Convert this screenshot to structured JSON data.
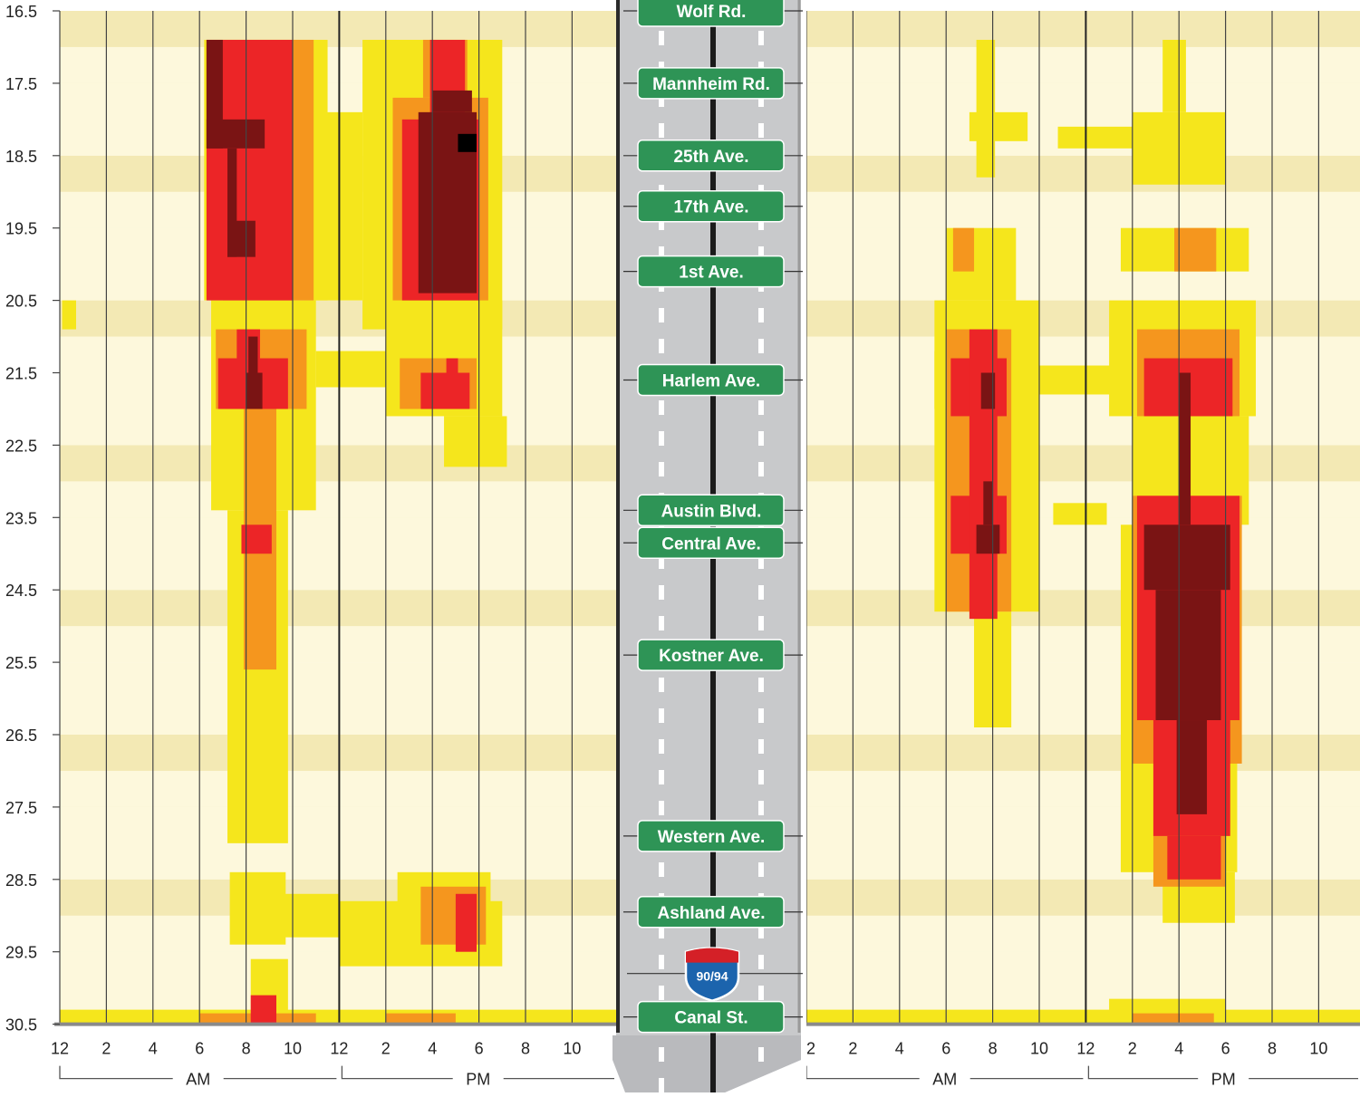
{
  "y_axis": {
    "ticks": [
      "16.5",
      "17.5",
      "18.5",
      "19.5",
      "20.5",
      "21.5",
      "22.5",
      "23.5",
      "24.5",
      "25.5",
      "26.5",
      "27.5",
      "28.5",
      "29.5",
      "30.5"
    ]
  },
  "x_axis": {
    "ticks": [
      "12",
      "2",
      "4",
      "6",
      "8",
      "10",
      "12",
      "2",
      "4",
      "6",
      "8",
      "10"
    ],
    "periods": [
      "AM",
      "PM"
    ]
  },
  "colors": {
    "band_light": "#fdf8dc",
    "band_dark": "#f3e9b4",
    "yellow": "#f5e61c",
    "orange": "#f5961e",
    "red": "#ec2527",
    "darkred": "#7a1414",
    "black": "#000000",
    "sign_green": "#2e9456",
    "highway_gray": "#c8c9cb"
  },
  "highway": {
    "shield": "90/94",
    "exits": [
      {
        "label": "Wolf Rd.",
        "mile": 16.5
      },
      {
        "label": "Mannheim Rd.",
        "mile": 17.5
      },
      {
        "label": "25th Ave.",
        "mile": 18.5
      },
      {
        "label": "17th Ave.",
        "mile": 19.2
      },
      {
        "label": "1st Ave.",
        "mile": 20.1
      },
      {
        "label": "Harlem Ave.",
        "mile": 21.6
      },
      {
        "label": "Austin Blvd.",
        "mile": 23.4
      },
      {
        "label": "Central Ave.",
        "mile": 23.85
      },
      {
        "label": "Kostner Ave.",
        "mile": 25.4
      },
      {
        "label": "Western Ave.",
        "mile": 27.9
      },
      {
        "label": "Ashland Ave.",
        "mile": 28.95
      },
      {
        "label": "Canal St.",
        "mile": 30.4
      }
    ]
  },
  "chart_data": [
    {
      "type": "heatmap",
      "xlabel": "",
      "ylabel": "",
      "x_unit_hours": [
        0,
        24
      ],
      "y_range_mile": [
        16.5,
        30.5
      ],
      "level_order": [
        "yellow",
        "orange",
        "red",
        "darkred",
        "black"
      ],
      "regions": [
        {
          "level": "yellow",
          "hours": [
            6.2,
            11.5
          ],
          "miles": [
            16.9,
            20.5
          ]
        },
        {
          "level": "yellow",
          "hours": [
            10.5,
            13.0
          ],
          "miles": [
            17.9,
            20.5
          ]
        },
        {
          "level": "yellow",
          "hours": [
            13.0,
            19.0
          ],
          "miles": [
            16.9,
            20.9
          ]
        },
        {
          "level": "yellow",
          "hours": [
            6.5,
            11.0
          ],
          "miles": [
            20.5,
            23.4
          ]
        },
        {
          "level": "yellow",
          "hours": [
            11.0,
            14.5
          ],
          "miles": [
            21.2,
            21.7
          ]
        },
        {
          "level": "yellow",
          "hours": [
            14.0,
            19.0
          ],
          "miles": [
            20.5,
            22.1
          ]
        },
        {
          "level": "yellow",
          "hours": [
            16.5,
            19.2
          ],
          "miles": [
            22.1,
            22.8
          ]
        },
        {
          "level": "yellow",
          "hours": [
            7.2,
            9.8
          ],
          "miles": [
            23.4,
            28.0
          ]
        },
        {
          "level": "yellow",
          "hours": [
            7.3,
            9.7
          ],
          "miles": [
            28.4,
            29.4
          ]
        },
        {
          "level": "yellow",
          "hours": [
            9.0,
            12.0
          ],
          "miles": [
            28.7,
            29.3
          ]
        },
        {
          "level": "yellow",
          "hours": [
            12.0,
            19.0
          ],
          "miles": [
            28.8,
            29.7
          ]
        },
        {
          "level": "yellow",
          "hours": [
            14.5,
            18.5
          ],
          "miles": [
            28.4,
            28.9
          ]
        },
        {
          "level": "yellow",
          "hours": [
            8.2,
            9.8
          ],
          "miles": [
            29.6,
            30.4
          ]
        },
        {
          "level": "yellow",
          "hours": [
            0.1,
            0.7
          ],
          "miles": [
            20.5,
            20.9
          ]
        },
        {
          "level": "yellow",
          "hours": [
            0,
            24
          ],
          "miles": [
            30.3,
            30.5
          ]
        },
        {
          "level": "orange",
          "hours": [
            7.0,
            10.9
          ],
          "miles": [
            16.9,
            20.5
          ]
        },
        {
          "level": "orange",
          "hours": [
            14.3,
            18.4
          ],
          "miles": [
            17.7,
            20.5
          ]
        },
        {
          "level": "orange",
          "hours": [
            6.7,
            10.6
          ],
          "miles": [
            20.9,
            22.0
          ]
        },
        {
          "level": "orange",
          "hours": [
            15.6,
            17.5
          ],
          "miles": [
            16.9,
            17.7
          ]
        },
        {
          "level": "orange",
          "hours": [
            14.6,
            17.9
          ],
          "miles": [
            21.3,
            22.0
          ]
        },
        {
          "level": "orange",
          "hours": [
            7.9,
            9.3
          ],
          "miles": [
            22.0,
            25.6
          ]
        },
        {
          "level": "orange",
          "hours": [
            15.5,
            18.3
          ],
          "miles": [
            28.6,
            29.4
          ]
        },
        {
          "level": "orange",
          "hours": [
            6.0,
            11.0
          ],
          "miles": [
            30.35,
            30.5
          ]
        },
        {
          "level": "orange",
          "hours": [
            14.0,
            17.0
          ],
          "miles": [
            30.35,
            30.5
          ]
        },
        {
          "level": "red",
          "hours": [
            6.3,
            10.0
          ],
          "miles": [
            16.9,
            20.5
          ]
        },
        {
          "level": "red",
          "hours": [
            14.7,
            18.0
          ],
          "miles": [
            18.0,
            20.5
          ]
        },
        {
          "level": "red",
          "hours": [
            15.9,
            17.4
          ],
          "miles": [
            16.9,
            18.0
          ]
        },
        {
          "level": "red",
          "hours": [
            6.8,
            9.8
          ],
          "miles": [
            21.3,
            22.0
          ]
        },
        {
          "level": "red",
          "hours": [
            7.6,
            8.6
          ],
          "miles": [
            20.9,
            21.3
          ]
        },
        {
          "level": "red",
          "hours": [
            15.5,
            17.6
          ],
          "miles": [
            21.5,
            22.0
          ]
        },
        {
          "level": "red",
          "hours": [
            16.6,
            17.1
          ],
          "miles": [
            21.3,
            21.5
          ]
        },
        {
          "level": "red",
          "hours": [
            7.8,
            9.1
          ],
          "miles": [
            23.6,
            24.0
          ]
        },
        {
          "level": "red",
          "hours": [
            17.0,
            17.9
          ],
          "miles": [
            28.7,
            29.5
          ]
        },
        {
          "level": "red",
          "hours": [
            8.2,
            9.3
          ],
          "miles": [
            30.1,
            30.5
          ]
        },
        {
          "level": "darkred",
          "hours": [
            6.3,
            7.0
          ],
          "miles": [
            16.9,
            18.4
          ]
        },
        {
          "level": "darkred",
          "hours": [
            6.3,
            8.8
          ],
          "miles": [
            18.0,
            18.4
          ]
        },
        {
          "level": "darkred",
          "hours": [
            7.2,
            7.6
          ],
          "miles": [
            18.4,
            19.9
          ]
        },
        {
          "level": "darkred",
          "hours": [
            7.2,
            8.4
          ],
          "miles": [
            19.4,
            19.9
          ]
        },
        {
          "level": "darkred",
          "hours": [
            15.4,
            17.9
          ],
          "miles": [
            17.9,
            20.4
          ]
        },
        {
          "level": "darkred",
          "hours": [
            16.0,
            17.7
          ],
          "miles": [
            17.6,
            17.9
          ]
        },
        {
          "level": "darkred",
          "hours": [
            8.0,
            8.7
          ],
          "miles": [
            21.5,
            22.0
          ]
        },
        {
          "level": "darkred",
          "hours": [
            8.1,
            8.5
          ],
          "miles": [
            21.0,
            21.5
          ]
        },
        {
          "level": "black",
          "hours": [
            17.1,
            17.9
          ],
          "miles": [
            18.2,
            18.45
          ]
        }
      ]
    },
    {
      "type": "heatmap",
      "xlabel": "",
      "ylabel": "",
      "x_unit_hours": [
        0,
        24
      ],
      "y_range_mile": [
        16.5,
        30.5
      ],
      "level_order": [
        "yellow",
        "orange",
        "red",
        "darkred",
        "black"
      ],
      "regions": [
        {
          "level": "yellow",
          "hours": [
            7.0,
            9.5
          ],
          "miles": [
            17.9,
            18.3
          ]
        },
        {
          "level": "yellow",
          "hours": [
            7.3,
            8.1
          ],
          "miles": [
            16.9,
            18.8
          ]
        },
        {
          "level": "yellow",
          "hours": [
            10.8,
            14.0
          ],
          "miles": [
            18.1,
            18.4
          ]
        },
        {
          "level": "yellow",
          "hours": [
            14.0,
            18.0
          ],
          "miles": [
            17.9,
            18.9
          ]
        },
        {
          "level": "yellow",
          "hours": [
            15.3,
            16.3
          ],
          "miles": [
            16.9,
            17.9
          ]
        },
        {
          "level": "yellow",
          "hours": [
            6.0,
            9.0
          ],
          "miles": [
            19.5,
            20.5
          ]
        },
        {
          "level": "yellow",
          "hours": [
            13.5,
            19.0
          ],
          "miles": [
            19.5,
            20.1
          ]
        },
        {
          "level": "yellow",
          "hours": [
            5.5,
            10.0
          ],
          "miles": [
            20.5,
            24.8
          ]
        },
        {
          "level": "yellow",
          "hours": [
            5.5,
            10.0
          ],
          "miles": [
            21.2,
            22.0
          ]
        },
        {
          "level": "yellow",
          "hours": [
            10.0,
            13.5
          ],
          "miles": [
            21.4,
            21.8
          ]
        },
        {
          "level": "yellow",
          "hours": [
            13.0,
            19.3
          ],
          "miles": [
            20.5,
            22.1
          ]
        },
        {
          "level": "yellow",
          "hours": [
            14.0,
            19.0
          ],
          "miles": [
            22.1,
            23.6
          ]
        },
        {
          "level": "yellow",
          "hours": [
            10.6,
            12.9
          ],
          "miles": [
            23.3,
            23.6
          ]
        },
        {
          "level": "yellow",
          "hours": [
            7.2,
            8.8
          ],
          "miles": [
            24.8,
            26.4
          ]
        },
        {
          "level": "yellow",
          "hours": [
            13.5,
            18.5
          ],
          "miles": [
            23.6,
            28.4
          ]
        },
        {
          "level": "yellow",
          "hours": [
            15.3,
            18.4
          ],
          "miles": [
            28.4,
            29.1
          ]
        },
        {
          "level": "yellow",
          "hours": [
            0,
            24
          ],
          "miles": [
            30.3,
            30.5
          ]
        },
        {
          "level": "yellow",
          "hours": [
            13.0,
            18.0
          ],
          "miles": [
            30.15,
            30.5
          ]
        },
        {
          "level": "orange",
          "hours": [
            6.0,
            8.8
          ],
          "miles": [
            20.9,
            24.8
          ]
        },
        {
          "level": "orange",
          "hours": [
            6.3,
            7.2
          ],
          "miles": [
            19.5,
            20.1
          ]
        },
        {
          "level": "orange",
          "hours": [
            15.8,
            17.6
          ],
          "miles": [
            19.5,
            20.1
          ]
        },
        {
          "level": "orange",
          "hours": [
            14.2,
            18.6
          ],
          "miles": [
            20.9,
            22.1
          ]
        },
        {
          "level": "orange",
          "hours": [
            14.0,
            18.7
          ],
          "miles": [
            23.2,
            26.9
          ]
        },
        {
          "level": "orange",
          "hours": [
            14.9,
            18.0
          ],
          "miles": [
            26.9,
            28.6
          ]
        },
        {
          "level": "orange",
          "hours": [
            14.0,
            17.5
          ],
          "miles": [
            30.35,
            30.5
          ]
        },
        {
          "level": "red",
          "hours": [
            6.2,
            8.6
          ],
          "miles": [
            21.3,
            22.1
          ]
        },
        {
          "level": "red",
          "hours": [
            6.2,
            8.6
          ],
          "miles": [
            23.2,
            24.0
          ]
        },
        {
          "level": "red",
          "hours": [
            7.0,
            8.2
          ],
          "miles": [
            20.9,
            24.9
          ]
        },
        {
          "level": "red",
          "hours": [
            14.5,
            18.3
          ],
          "miles": [
            21.3,
            22.1
          ]
        },
        {
          "level": "red",
          "hours": [
            14.2,
            18.6
          ],
          "miles": [
            23.2,
            26.3
          ]
        },
        {
          "level": "red",
          "hours": [
            14.9,
            18.2
          ],
          "miles": [
            26.3,
            27.9
          ]
        },
        {
          "level": "red",
          "hours": [
            15.5,
            17.8
          ],
          "miles": [
            27.9,
            28.5
          ]
        },
        {
          "level": "darkred",
          "hours": [
            7.5,
            8.1
          ],
          "miles": [
            21.5,
            22.0
          ]
        },
        {
          "level": "darkred",
          "hours": [
            7.3,
            8.3
          ],
          "miles": [
            23.6,
            24.0
          ]
        },
        {
          "level": "darkred",
          "hours": [
            7.6,
            8.0
          ],
          "miles": [
            23.0,
            23.6
          ]
        },
        {
          "level": "darkred",
          "hours": [
            14.5,
            18.2
          ],
          "miles": [
            23.6,
            24.5
          ]
        },
        {
          "level": "darkred",
          "hours": [
            15.0,
            17.8
          ],
          "miles": [
            24.5,
            26.3
          ]
        },
        {
          "level": "darkred",
          "hours": [
            15.9,
            17.2
          ],
          "miles": [
            26.3,
            27.6
          ]
        },
        {
          "level": "darkred",
          "hours": [
            16.0,
            16.5
          ],
          "miles": [
            21.5,
            23.6
          ]
        }
      ]
    }
  ]
}
